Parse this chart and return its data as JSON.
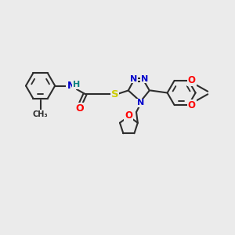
{
  "bg_color": "#ebebeb",
  "bond_color": "#2d2d2d",
  "bond_width": 1.5,
  "atom_colors": {
    "N": "#0000cc",
    "O": "#ff0000",
    "S": "#cccc00",
    "H": "#008080",
    "C": "#2d2d2d"
  }
}
